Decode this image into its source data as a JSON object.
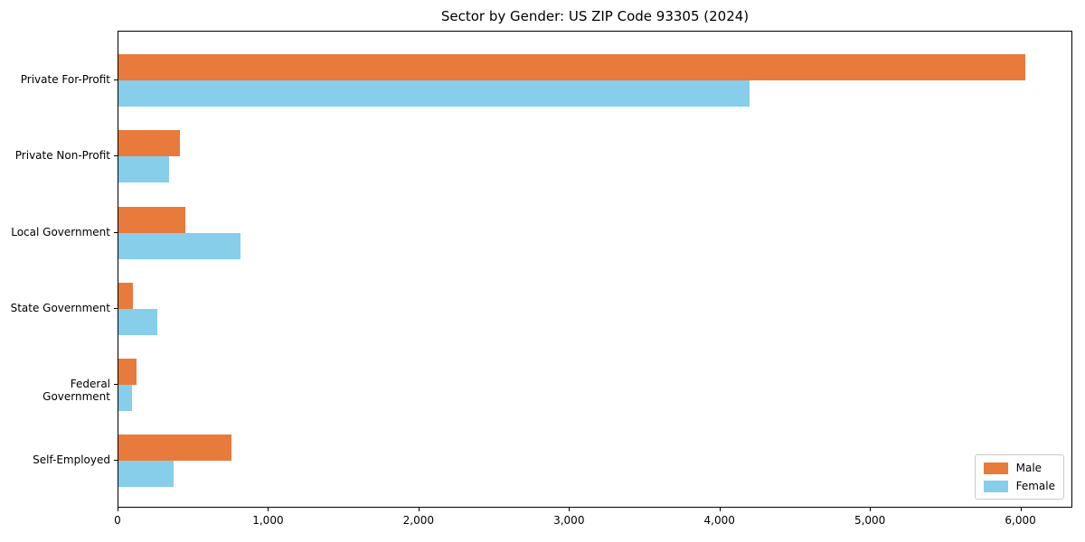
{
  "title": "Sector by Gender: US ZIP Code 93305 (2024)",
  "colors": {
    "male": "#E87B3C",
    "female": "#87CEEB",
    "axis": "#000000",
    "legend_border": "#CCCCCC",
    "background": "#FFFFFF"
  },
  "chart_data": {
    "type": "bar",
    "orientation": "horizontal",
    "title": "Sector by Gender: US ZIP Code 93305 (2024)",
    "categories": [
      "Private For-Profit",
      "Private Non-Profit",
      "Local Government",
      "State Government",
      "Federal Government",
      "Self-Employed"
    ],
    "series": [
      {
        "name": "Male",
        "color": "#E87B3C",
        "values": [
          6040,
          410,
          445,
          95,
          120,
          750
        ]
      },
      {
        "name": "Female",
        "color": "#87CEEB",
        "values": [
          4200,
          340,
          815,
          260,
          90,
          365
        ]
      }
    ],
    "xlabel": "",
    "ylabel": "",
    "xlim": [
      0,
      6345
    ],
    "xticks": [
      0,
      1000,
      2000,
      3000,
      4000,
      5000,
      6000
    ],
    "xtick_labels": [
      "0",
      "1,000",
      "2,000",
      "3,000",
      "4,000",
      "5,000",
      "6,000"
    ],
    "grid": false,
    "legend_position": "lower right",
    "legend_items": [
      "Male",
      "Female"
    ]
  }
}
